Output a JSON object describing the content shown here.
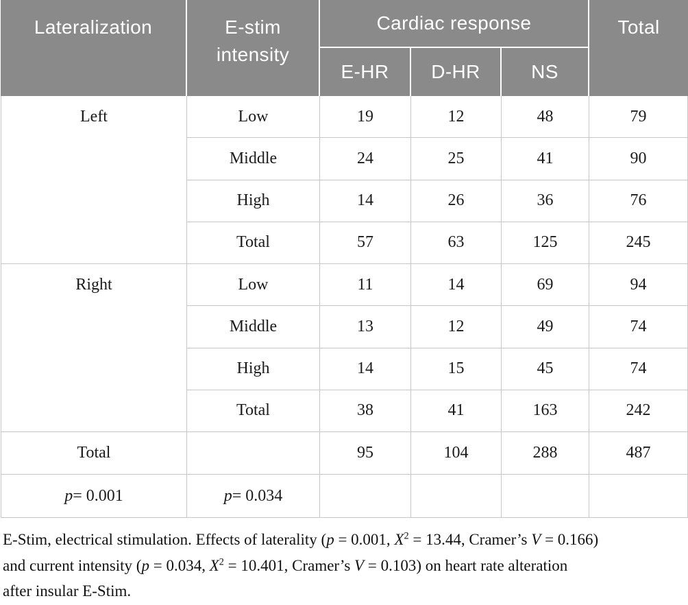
{
  "colors": {
    "header_bg": "#8a8a8a",
    "header_text": "#ffffff",
    "grid_line": "#c6c6c6",
    "body_text": "#1b1b1b"
  },
  "header": {
    "lateralization": "Lateralization",
    "estim_intensity": "E-stim intensity",
    "cardiac_response": "Cardiac response",
    "total_label": "Total",
    "sub": [
      "E-HR",
      "D-HR",
      "NS"
    ]
  },
  "table": {
    "groups": [
      {
        "label": "Left",
        "rows": [
          {
            "intensity": "Low",
            "e_hr": "19",
            "d_hr": "12",
            "ns": "48",
            "total": "79"
          },
          {
            "intensity": "Middle",
            "e_hr": "24",
            "d_hr": "25",
            "ns": "41",
            "total": "90"
          },
          {
            "intensity": "High",
            "e_hr": "14",
            "d_hr": "26",
            "ns": "36",
            "total": "76"
          },
          {
            "intensity": "Total",
            "e_hr": "57",
            "d_hr": "63",
            "ns": "125",
            "total": "245"
          }
        ]
      },
      {
        "label": "Right",
        "rows": [
          {
            "intensity": "Low",
            "e_hr": "11",
            "d_hr": "14",
            "ns": "69",
            "total": "94"
          },
          {
            "intensity": "Middle",
            "e_hr": "13",
            "d_hr": "12",
            "ns": "49",
            "total": "74"
          },
          {
            "intensity": "High",
            "e_hr": "14",
            "d_hr": "15",
            "ns": "45",
            "total": "74"
          },
          {
            "intensity": "Total",
            "e_hr": "38",
            "d_hr": "41",
            "ns": "163",
            "total": "242"
          }
        ]
      }
    ],
    "grand_total": {
      "label": "Total",
      "e_hr": "95",
      "d_hr": "104",
      "ns": "288",
      "total": "487"
    },
    "p_row": {
      "lateralization_p": [
        {
          "t": "p",
          "i": true
        },
        {
          "t": " = 0.001"
        }
      ],
      "intensity_p": [
        {
          "t": "p",
          "i": true
        },
        {
          "t": " = 0.034"
        }
      ]
    }
  },
  "footnote": {
    "lines": [
      [
        {
          "t": "E-Stim, electrical stimulation. Effects of laterality ("
        },
        {
          "t": "p",
          "i": true
        },
        {
          "t": " = 0.001, "
        },
        {
          "t": "X",
          "i": true
        },
        {
          "t": "2",
          "sup": true
        },
        {
          "t": " = 13.44, Cramer’s "
        },
        {
          "t": "V",
          "i": true
        },
        {
          "t": " = 0.166)"
        }
      ],
      [
        {
          "t": "and current intensity ("
        },
        {
          "t": "p",
          "i": true
        },
        {
          "t": " = 0.034, "
        },
        {
          "t": "X",
          "i": true
        },
        {
          "t": "2",
          "sup": true
        },
        {
          "t": " = 10.401, Cramer’s "
        },
        {
          "t": "V",
          "i": true
        },
        {
          "t": " = 0.103) on heart rate alteration"
        }
      ],
      [
        {
          "t": "after insular E-Stim."
        }
      ]
    ]
  }
}
